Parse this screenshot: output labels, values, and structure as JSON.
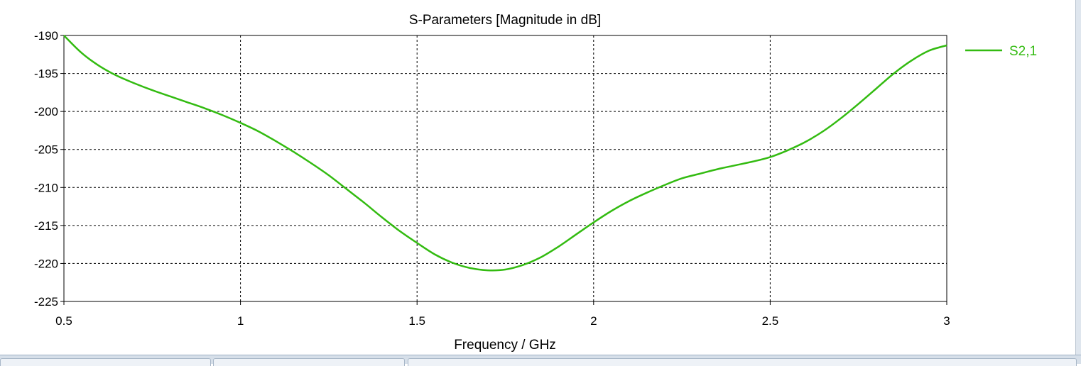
{
  "chart_data": {
    "type": "line",
    "title": "S-Parameters [Magnitude in dB]",
    "xlabel": "Frequency / GHz",
    "ylabel": "",
    "xlim": [
      0.5,
      3
    ],
    "ylim": [
      -225,
      -190
    ],
    "xticks": [
      "0.5",
      "1",
      "1.5",
      "2",
      "2.5",
      "3"
    ],
    "yticks": [
      "-190",
      "-195",
      "-200",
      "-205",
      "-210",
      "-215",
      "-220",
      "-225"
    ],
    "grid": true,
    "legend_position": "right",
    "series": [
      {
        "name": "S2,1",
        "color": "#33bb11",
        "x": [
          0.5,
          0.55,
          0.6,
          0.65,
          0.7,
          0.75,
          0.8,
          0.85,
          0.9,
          0.95,
          1.0,
          1.05,
          1.1,
          1.15,
          1.2,
          1.25,
          1.3,
          1.35,
          1.4,
          1.45,
          1.5,
          1.55,
          1.6,
          1.65,
          1.7,
          1.75,
          1.8,
          1.85,
          1.9,
          1.95,
          2.0,
          2.05,
          2.1,
          2.15,
          2.2,
          2.25,
          2.3,
          2.35,
          2.4,
          2.45,
          2.5,
          2.55,
          2.6,
          2.65,
          2.7,
          2.75,
          2.8,
          2.85,
          2.9,
          2.95,
          3.0
        ],
        "y": [
          -190,
          -192.3,
          -194.0,
          -195.3,
          -196.3,
          -197.2,
          -198.0,
          -198.8,
          -199.6,
          -200.5,
          -201.5,
          -202.6,
          -203.9,
          -205.3,
          -206.8,
          -208.4,
          -210.2,
          -212.0,
          -213.9,
          -215.7,
          -217.3,
          -218.8,
          -219.9,
          -220.6,
          -220.9,
          -220.8,
          -220.2,
          -219.2,
          -217.8,
          -216.2,
          -214.6,
          -213.1,
          -211.8,
          -210.7,
          -209.7,
          -208.8,
          -208.2,
          -207.6,
          -207.1,
          -206.6,
          -206.0,
          -205.1,
          -204.0,
          -202.6,
          -200.9,
          -199.0,
          -197.0,
          -195.0,
          -193.3,
          -192.0,
          -191.3
        ]
      }
    ]
  }
}
